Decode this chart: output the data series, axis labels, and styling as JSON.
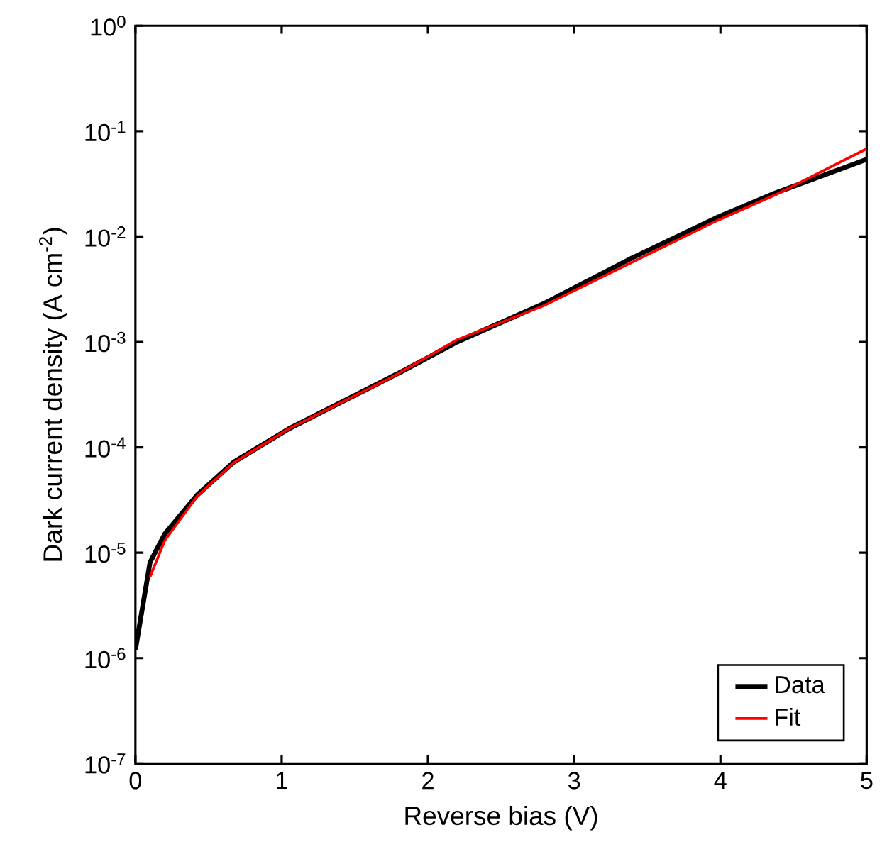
{
  "chart_data": {
    "type": "line",
    "xlabel": "Reverse bias (V)",
    "ylabel": "Dark current density (A cm$^{-2}$)",
    "log": "y",
    "xlim": [
      0,
      5
    ],
    "xticks": [
      0,
      1,
      2,
      3,
      4,
      5
    ],
    "ylim": [
      1e-07,
      1
    ],
    "yticks": [
      {
        "value": 1e-07,
        "label": "10$^{-7}$"
      },
      {
        "value": 1e-06,
        "label": "10$^{-6}$"
      },
      {
        "value": 1e-05,
        "label": "10$^{-5}$"
      },
      {
        "value": 0.0001,
        "label": "10$^{-4}$"
      },
      {
        "value": 0.001,
        "label": "10$^{-3}$"
      },
      {
        "value": 0.01,
        "label": "10$^{-2}$"
      },
      {
        "value": 0.1,
        "label": "10$^{-1}$"
      },
      {
        "value": 1,
        "label": "10$^{0}$"
      }
    ],
    "legend": "bottom right",
    "grid": false,
    "marker": "none",
    "line_style": "solid",
    "series": [
      {
        "name": "Data",
        "color": "#000000",
        "x": [
          0,
          0.1,
          0.2,
          0.42,
          0.67,
          1.05,
          1.84,
          2.2,
          2.79,
          3.4,
          3.97,
          4.38,
          5
        ],
        "values": [
          1.2e-06,
          8.1e-06,
          1.5e-05,
          3.5e-05,
          7.2e-05,
          0.00015,
          0.00054,
          0.001,
          0.0023,
          0.0063,
          0.015,
          0.026,
          0.054
        ]
      },
      {
        "name": "Fit",
        "color": "#ff0000",
        "x": [
          0.1,
          0.2,
          0.42,
          0.67,
          1.05,
          1.75,
          2.2,
          2.79,
          3.97,
          4.38,
          5
        ],
        "values": [
          5.9e-06,
          1.3e-05,
          3.4e-05,
          7.1e-05,
          0.00015,
          0.00046,
          0.00105,
          0.0022,
          0.014,
          0.025,
          0.068
        ]
      }
    ]
  }
}
